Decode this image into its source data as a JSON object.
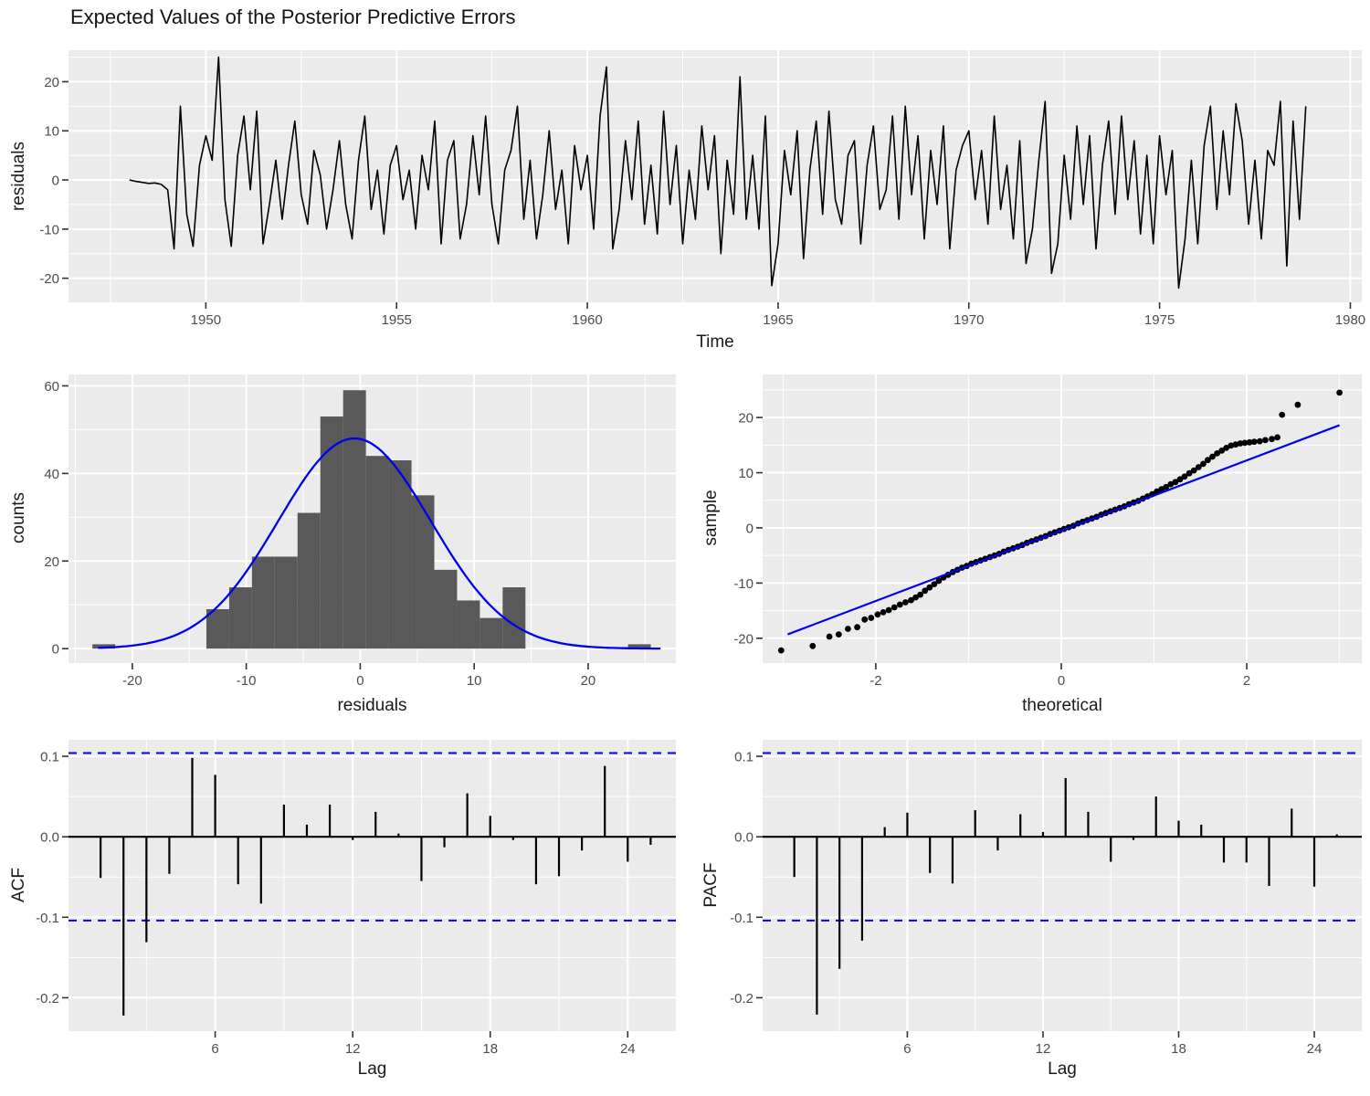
{
  "title": "Expected Values of the Posterior Predictive Errors",
  "labels": {
    "ts_x": "Time",
    "ts_y": "residuals",
    "hist_x": "residuals",
    "hist_y": "counts",
    "qq_x": "theoretical",
    "qq_y": "sample",
    "acf_x": "Lag",
    "acf_y": "ACF",
    "pacf_x": "Lag",
    "pacf_y": "PACF"
  },
  "colors": {
    "panel_bg": "#EBEBEB",
    "grid": "#FFFFFF",
    "bar_fill": "#595959",
    "series_line": "#000000",
    "blue": "#0000EE",
    "tick_mark": "#333333",
    "tick_text": "#4D4D4D",
    "title_text": "#141414"
  },
  "chart_data": [
    {
      "id": "timeseries",
      "type": "line",
      "title": "Expected Values of the Posterior Predictive Errors",
      "xlabel": "Time",
      "ylabel": "residuals",
      "x_start": 1948,
      "x_step_years": 0.166667,
      "xlim": [
        1946.4,
        1980.3
      ],
      "ylim": [
        -24.9,
        26.4
      ],
      "xticks": [
        1950,
        1955,
        1960,
        1965,
        1970,
        1975,
        1980
      ],
      "xtick_labels": [
        "1950",
        "1955",
        "1960",
        "1965",
        "1970",
        "1975",
        "1980"
      ],
      "xminor": [
        1947.5,
        1952.5,
        1957.5,
        1962.5,
        1967.5,
        1972.5,
        1977.5
      ],
      "yticks": [
        20,
        10,
        0,
        -10,
        -20
      ],
      "ytick_labels": [
        "20",
        "10",
        "0",
        "-10",
        "-20"
      ],
      "yminor": [
        25,
        15,
        5,
        -5,
        -15
      ],
      "values": [
        0,
        -0.3,
        -0.5,
        -0.7,
        -0.6,
        -0.9,
        -2,
        -14,
        15,
        -7,
        -13.5,
        3,
        9,
        4,
        25,
        -4,
        -13.5,
        5,
        13,
        -2,
        14,
        -13,
        -5,
        4,
        -8,
        3,
        12,
        -3,
        -9,
        6,
        1,
        -10,
        -2,
        8,
        -5,
        -12,
        4,
        13,
        -6,
        2,
        -11,
        3,
        7,
        -4,
        2,
        -10,
        5,
        -2,
        12,
        -13,
        4,
        8,
        -12,
        -5,
        9,
        -3,
        13,
        -5,
        -13,
        2,
        6,
        15,
        -8,
        4,
        -12,
        -3,
        10,
        -6,
        2,
        -13,
        7,
        -2,
        5,
        -10,
        13,
        23,
        -14,
        -6,
        8,
        -4,
        12,
        -9,
        3,
        -11,
        14,
        -5,
        7,
        -13,
        2,
        -8,
        11,
        -2,
        9,
        -15,
        4,
        -7,
        21,
        -8,
        5,
        -10,
        13,
        -21.5,
        -13,
        6,
        -3,
        10,
        -16,
        2,
        12,
        -7,
        14,
        -4,
        -9,
        5,
        8,
        -13,
        3,
        11,
        -6,
        -2,
        13,
        -8,
        15,
        -3,
        9,
        -12,
        6,
        -5,
        11,
        -14,
        2,
        7,
        10,
        -4,
        6,
        -9,
        13,
        -6,
        3,
        -12,
        8,
        -17,
        -10,
        4,
        16,
        -19,
        -13,
        5,
        -8,
        11,
        -5,
        9,
        -14,
        3,
        12,
        -7,
        13,
        -4,
        8,
        -11,
        5,
        -13,
        9,
        -3,
        6,
        -22,
        -12,
        4,
        -13,
        7,
        15,
        -6,
        10,
        -3,
        15.5,
        8,
        -9,
        4,
        -12,
        6,
        3,
        16,
        -17.5,
        12,
        -8,
        15
      ]
    },
    {
      "id": "histogram",
      "type": "bar",
      "xlabel": "residuals",
      "ylabel": "counts",
      "xlim": [
        -25.6,
        27.7
      ],
      "ylim": [
        -3.3,
        62.6
      ],
      "xticks": [
        -20,
        -10,
        0,
        10,
        20
      ],
      "xtick_labels": [
        "-20",
        "-10",
        "0",
        "10",
        "20"
      ],
      "xminor": [
        -25,
        -15,
        -5,
        5,
        15,
        25
      ],
      "yticks": [
        0,
        20,
        40,
        60
      ],
      "ytick_labels": [
        "0",
        "20",
        "40",
        "60"
      ],
      "yminor": [
        10,
        30,
        50
      ],
      "bars": [
        [
          -23.5,
          -21.5,
          1
        ],
        [
          -13.5,
          -11.5,
          9
        ],
        [
          -11.5,
          -9.5,
          14
        ],
        [
          -9.5,
          -7.5,
          21
        ],
        [
          -7.5,
          -5.5,
          21
        ],
        [
          -5.5,
          -3.5,
          31
        ],
        [
          -3.5,
          -1.5,
          53
        ],
        [
          -1.5,
          0.5,
          59
        ],
        [
          0.5,
          2.5,
          44
        ],
        [
          2.5,
          4.5,
          43
        ],
        [
          4.5,
          6.5,
          35
        ],
        [
          6.5,
          8.5,
          18
        ],
        [
          8.5,
          10.5,
          11
        ],
        [
          10.5,
          12.5,
          7
        ],
        [
          12.5,
          14.5,
          14
        ],
        [
          23.5,
          25.5,
          1
        ]
      ],
      "normal_curve": {
        "mean": -0.5,
        "sd": 6.7,
        "peak": 48,
        "x_from": -23,
        "x_to": 26.5
      }
    },
    {
      "id": "qq",
      "type": "scatter",
      "xlabel": "theoretical",
      "ylabel": "sample",
      "xlim": [
        -3.22,
        3.24
      ],
      "ylim": [
        -24.5,
        27.8
      ],
      "xticks": [
        -2,
        0,
        2
      ],
      "xtick_labels": [
        "-2",
        "0",
        "2"
      ],
      "xminor": [
        -3,
        -1,
        1,
        3
      ],
      "yticks": [
        20,
        10,
        0,
        -10,
        -20
      ],
      "ytick_labels": [
        "20",
        "10",
        "0",
        "-10",
        "-20"
      ],
      "yminor": [
        25,
        15,
        5,
        -5,
        -15
      ],
      "ref_line": {
        "x1": -2.95,
        "y1": -19.3,
        "x2": 3.0,
        "y2": 18.6
      },
      "points": [
        [
          -3.02,
          -22.2
        ],
        [
          -2.68,
          -21.4
        ],
        [
          -2.5,
          -19.7
        ],
        [
          -2.4,
          -19.3
        ],
        [
          -2.3,
          -18.3
        ],
        [
          -2.2,
          -18.0
        ],
        [
          -2.12,
          -16.6
        ],
        [
          -2.05,
          -16.3
        ],
        [
          -1.98,
          -15.7
        ],
        [
          -1.92,
          -15.3
        ],
        [
          -1.86,
          -14.9
        ],
        [
          -1.8,
          -14.4
        ],
        [
          -1.74,
          -13.9
        ],
        [
          -1.68,
          -13.5
        ],
        [
          -1.62,
          -13.1
        ],
        [
          -1.57,
          -12.6
        ],
        [
          -1.52,
          -12.1
        ],
        [
          -1.47,
          -11.4
        ],
        [
          -1.42,
          -10.8
        ],
        [
          -1.37,
          -10.2
        ],
        [
          -1.32,
          -9.6
        ],
        [
          -1.27,
          -9.0
        ],
        [
          -1.22,
          -8.5
        ],
        [
          -1.17,
          -8.0
        ],
        [
          -1.12,
          -7.6
        ],
        [
          -1.07,
          -7.2
        ],
        [
          -1.02,
          -6.9
        ],
        [
          -0.97,
          -6.5
        ],
        [
          -0.92,
          -6.2
        ],
        [
          -0.87,
          -5.9
        ],
        [
          -0.82,
          -5.6
        ],
        [
          -0.77,
          -5.3
        ],
        [
          -0.72,
          -5.0
        ],
        [
          -0.67,
          -4.7
        ],
        [
          -0.62,
          -4.3
        ],
        [
          -0.57,
          -4.0
        ],
        [
          -0.52,
          -3.7
        ],
        [
          -0.47,
          -3.4
        ],
        [
          -0.42,
          -3.1
        ],
        [
          -0.37,
          -2.7
        ],
        [
          -0.32,
          -2.4
        ],
        [
          -0.27,
          -2.1
        ],
        [
          -0.22,
          -1.8
        ],
        [
          -0.17,
          -1.5
        ],
        [
          -0.12,
          -1.1
        ],
        [
          -0.07,
          -0.8
        ],
        [
          -0.02,
          -0.5
        ],
        [
          0.03,
          -0.2
        ],
        [
          0.08,
          0.1
        ],
        [
          0.13,
          0.4
        ],
        [
          0.18,
          0.8
        ],
        [
          0.23,
          1.1
        ],
        [
          0.28,
          1.4
        ],
        [
          0.33,
          1.7
        ],
        [
          0.38,
          2.0
        ],
        [
          0.43,
          2.4
        ],
        [
          0.48,
          2.7
        ],
        [
          0.53,
          3.0
        ],
        [
          0.58,
          3.3
        ],
        [
          0.63,
          3.6
        ],
        [
          0.68,
          3.9
        ],
        [
          0.73,
          4.3
        ],
        [
          0.78,
          4.6
        ],
        [
          0.83,
          4.9
        ],
        [
          0.88,
          5.3
        ],
        [
          0.93,
          5.7
        ],
        [
          0.98,
          6.1
        ],
        [
          1.03,
          6.6
        ],
        [
          1.08,
          7.0
        ],
        [
          1.13,
          7.4
        ],
        [
          1.18,
          7.9
        ],
        [
          1.23,
          8.3
        ],
        [
          1.28,
          8.8
        ],
        [
          1.33,
          9.3
        ],
        [
          1.38,
          9.9
        ],
        [
          1.43,
          10.4
        ],
        [
          1.48,
          11.0
        ],
        [
          1.53,
          11.6
        ],
        [
          1.58,
          12.3
        ],
        [
          1.63,
          12.9
        ],
        [
          1.68,
          13.5
        ],
        [
          1.73,
          14.0
        ],
        [
          1.78,
          14.5
        ],
        [
          1.83,
          14.9
        ],
        [
          1.88,
          15.1
        ],
        [
          1.93,
          15.3
        ],
        [
          1.98,
          15.4
        ],
        [
          2.03,
          15.5
        ],
        [
          2.08,
          15.6
        ],
        [
          2.14,
          15.7
        ],
        [
          2.2,
          15.9
        ],
        [
          2.27,
          16.1
        ],
        [
          2.33,
          16.4
        ],
        [
          2.38,
          20.5
        ],
        [
          2.55,
          22.3
        ],
        [
          3.0,
          24.5
        ]
      ]
    },
    {
      "id": "acf",
      "type": "stem",
      "xlabel": "Lag",
      "ylabel": "ACF",
      "xlim": [
        -0.4,
        26.1
      ],
      "ylim": [
        -0.2415,
        0.1205
      ],
      "xticks": [
        6,
        12,
        18,
        24
      ],
      "xtick_labels": [
        "6",
        "12",
        "18",
        "24"
      ],
      "xminor": [
        3,
        9,
        15,
        21
      ],
      "yticks": [
        0.1,
        0.0,
        -0.1,
        -0.2
      ],
      "ytick_labels": [
        "0.1",
        "0.0",
        "-0.1",
        "-0.2"
      ],
      "yminor": [
        0.05,
        -0.05,
        -0.15
      ],
      "conf_bound": 0.104,
      "lags": [
        1,
        2,
        3,
        4,
        5,
        6,
        7,
        8,
        9,
        10,
        11,
        12,
        13,
        14,
        15,
        16,
        17,
        18,
        19,
        20,
        21,
        22,
        23,
        24,
        25
      ],
      "values": [
        -0.051,
        -0.222,
        -0.131,
        -0.046,
        0.098,
        0.077,
        -0.059,
        -0.083,
        0.04,
        0.015,
        0.04,
        -0.004,
        0.031,
        0.004,
        -0.055,
        -0.013,
        0.054,
        0.026,
        -0.004,
        -0.059,
        -0.049,
        -0.017,
        0.088,
        -0.031,
        -0.01
      ]
    },
    {
      "id": "pacf",
      "type": "stem",
      "xlabel": "Lag",
      "ylabel": "PACF",
      "xlim": [
        -0.4,
        26.1
      ],
      "ylim": [
        -0.2415,
        0.1205
      ],
      "xticks": [
        6,
        12,
        18,
        24
      ],
      "xtick_labels": [
        "6",
        "12",
        "18",
        "24"
      ],
      "xminor": [
        3,
        9,
        15,
        21
      ],
      "yticks": [
        0.1,
        0.0,
        -0.1,
        -0.2
      ],
      "ytick_labels": [
        "0.1",
        "0.0",
        "-0.1",
        "-0.2"
      ],
      "yminor": [
        0.05,
        -0.05,
        -0.15
      ],
      "conf_bound": 0.104,
      "lags": [
        1,
        2,
        3,
        4,
        5,
        6,
        7,
        8,
        9,
        10,
        11,
        12,
        13,
        14,
        15,
        16,
        17,
        18,
        19,
        20,
        21,
        22,
        23,
        24,
        25
      ],
      "values": [
        -0.05,
        -0.221,
        -0.164,
        -0.129,
        0.012,
        0.03,
        -0.045,
        -0.058,
        0.033,
        -0.017,
        0.028,
        0.006,
        0.073,
        0.031,
        -0.031,
        -0.004,
        0.05,
        0.02,
        0.015,
        -0.032,
        -0.032,
        -0.061,
        0.035,
        -0.062,
        0.003
      ]
    }
  ]
}
